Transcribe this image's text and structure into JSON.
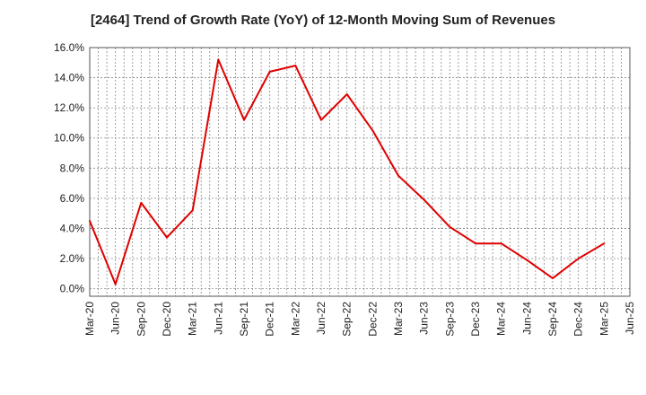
{
  "chart_data": {
    "type": "line",
    "title": "[2464]  Trend of Growth Rate (YoY) of 12-Month Moving Sum of Revenues",
    "xlabel": "",
    "ylabel": "",
    "ylim": [
      -0.5,
      16.0
    ],
    "yticks": [
      "0.0%",
      "2.0%",
      "4.0%",
      "6.0%",
      "8.0%",
      "10.0%",
      "12.0%",
      "14.0%",
      "16.0%"
    ],
    "ytick_values": [
      0,
      2,
      4,
      6,
      8,
      10,
      12,
      14,
      16
    ],
    "x_ticks": [
      "Mar-20",
      "Jun-20",
      "Sep-20",
      "Dec-20",
      "Mar-21",
      "Jun-21",
      "Sep-21",
      "Dec-21",
      "Mar-22",
      "Jun-22",
      "Sep-22",
      "Dec-22",
      "Mar-23",
      "Jun-23",
      "Sep-23",
      "Dec-23",
      "Mar-24",
      "Jun-24",
      "Sep-24",
      "Dec-24",
      "Mar-25",
      "Jun-25"
    ],
    "grid": true,
    "legend": "none",
    "series": [
      {
        "color": "#e00000",
        "x": [
          "Mar-20",
          "Jun-20",
          "Sep-20",
          "Dec-20",
          "Mar-21",
          "Jun-21",
          "Sep-21",
          "Dec-21",
          "Mar-22",
          "Jun-22",
          "Sep-22",
          "Dec-22",
          "Mar-23",
          "Jun-23",
          "Sep-23",
          "Dec-23",
          "Mar-24",
          "Jun-24",
          "Sep-24",
          "Dec-24",
          "Mar-25"
        ],
        "values": [
          4.5,
          0.3,
          5.7,
          3.4,
          5.2,
          15.2,
          11.2,
          14.4,
          14.8,
          11.2,
          12.9,
          10.5,
          7.5,
          5.9,
          4.1,
          3.0,
          3.0,
          1.9,
          0.7,
          2.0,
          3.0
        ]
      }
    ]
  }
}
